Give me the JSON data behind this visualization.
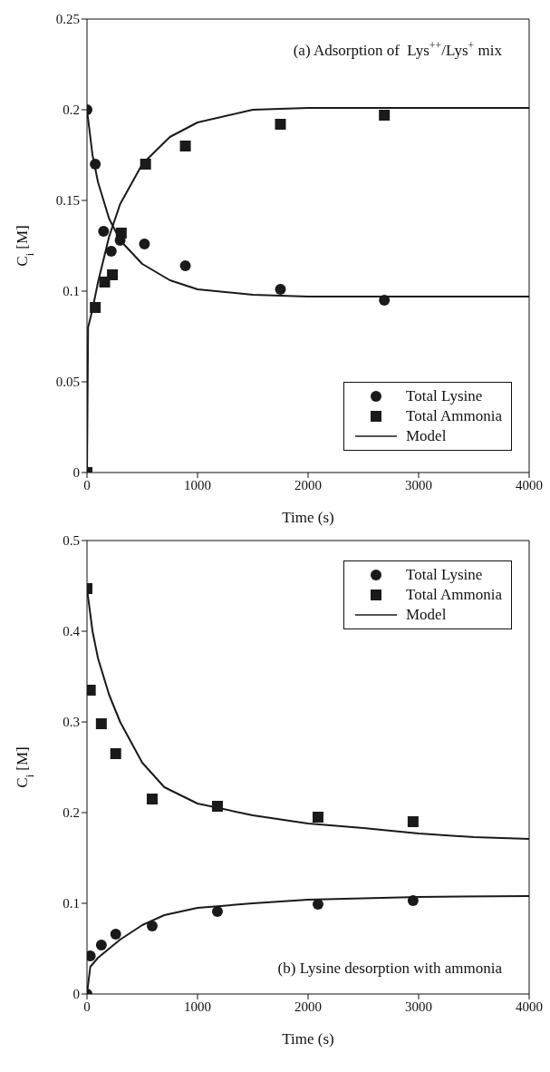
{
  "chart_data": [
    {
      "type": "scatter",
      "annotations": [
        "(a) Adsorption of  Lys$^{++}$/Lys$^{+}$ mix"
      ],
      "xlabel": "Time (s)",
      "ylabel": "C$_{i}$ [M]",
      "xlim": [
        0,
        4000
      ],
      "xticks": [
        0,
        1000,
        2000,
        3000,
        4000
      ],
      "ylim": [
        0,
        0.25
      ],
      "yticks": [
        0,
        0.05,
        0.1,
        0.15,
        0.2,
        0.25
      ],
      "grid": false,
      "legend": "bottom right",
      "series": [
        {
          "name": "Total Lysine",
          "marker": "circle",
          "color": "#1a1a1a",
          "x": [
            0,
            75,
            150,
            220,
            300,
            520,
            890,
            1750,
            2690
          ],
          "values": [
            0.2,
            0.17,
            0.133,
            0.122,
            0.128,
            0.126,
            0.114,
            0.101,
            0.095
          ]
        },
        {
          "name": "Total Ammonia",
          "marker": "square",
          "color": "#1a1a1a",
          "x": [
            0,
            75,
            160,
            230,
            310,
            530,
            890,
            1750,
            2690
          ],
          "values": [
            0,
            0.091,
            0.105,
            0.109,
            0.132,
            0.17,
            0.18,
            0.192,
            0.197
          ]
        },
        {
          "name": "Model",
          "type": "line",
          "marker": "none",
          "color": "#1a1a1a",
          "x": [
            0,
            50,
            100,
            200,
            300,
            500,
            750,
            1000,
            1500,
            2000,
            4000
          ],
          "values": [
            0.2,
            0.175,
            0.16,
            0.14,
            0.128,
            0.115,
            0.106,
            0.101,
            0.098,
            0.097,
            0.097
          ]
        },
        {
          "type": "line",
          "marker": "none",
          "color": "#1a1a1a",
          "x": [
            0,
            10,
            50,
            100,
            200,
            300,
            500,
            750,
            1000,
            1500,
            2000,
            4000
          ],
          "values": [
            0,
            0.08,
            0.09,
            0.105,
            0.13,
            0.148,
            0.17,
            0.185,
            0.193,
            0.2,
            0.201,
            0.201
          ]
        }
      ]
    },
    {
      "type": "scatter",
      "annotations": [
        "(b) Lysine desorption with ammonia"
      ],
      "xlabel": "Time (s)",
      "ylabel": "C$_{i}$ [M]",
      "xlim": [
        0,
        4000
      ],
      "xticks": [
        0,
        1000,
        2000,
        3000,
        4000
      ],
      "ylim": [
        0,
        0.5
      ],
      "yticks": [
        0,
        0.1,
        0.2,
        0.3,
        0.4,
        0.5
      ],
      "grid": false,
      "legend": "top right",
      "series": [
        {
          "name": "Total Lysine",
          "marker": "circle",
          "color": "#1a1a1a",
          "x": [
            0,
            30,
            130,
            260,
            590,
            1180,
            2090,
            2950
          ],
          "values": [
            0,
            0.042,
            0.054,
            0.066,
            0.075,
            0.091,
            0.099,
            0.103
          ]
        },
        {
          "name": "Total Ammonia",
          "marker": "square",
          "color": "#1a1a1a",
          "x": [
            0,
            30,
            130,
            260,
            590,
            1180,
            2090,
            2950
          ],
          "values": [
            0.447,
            0.335,
            0.298,
            0.265,
            0.215,
            0.207,
            0.195,
            0.19
          ]
        },
        {
          "name": "Model",
          "type": "line",
          "marker": "none",
          "color": "#1a1a1a",
          "x": [
            0,
            50,
            100,
            200,
            300,
            500,
            700,
            1000,
            1500,
            2000,
            2500,
            3000,
            3500,
            4000
          ],
          "values": [
            0.447,
            0.4,
            0.37,
            0.33,
            0.3,
            0.255,
            0.228,
            0.21,
            0.197,
            0.188,
            0.183,
            0.177,
            0.173,
            0.171
          ]
        },
        {
          "type": "line",
          "marker": "none",
          "color": "#1a1a1a",
          "x": [
            0,
            30,
            100,
            200,
            300,
            500,
            700,
            1000,
            1500,
            2000,
            3000,
            4000
          ],
          "values": [
            0,
            0.03,
            0.04,
            0.05,
            0.06,
            0.076,
            0.087,
            0.095,
            0.1,
            0.104,
            0.107,
            0.108
          ]
        }
      ]
    }
  ]
}
